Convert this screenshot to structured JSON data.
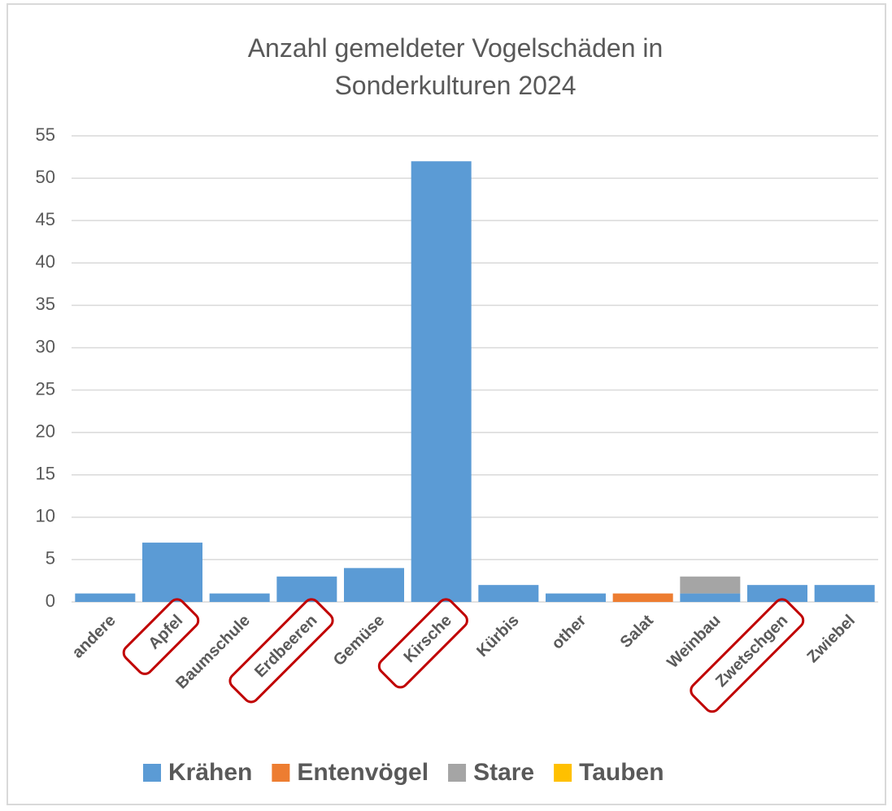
{
  "chart_data": {
    "type": "stacked_bar",
    "title": "Anzahl gemeldeter Vogelschäden in Sonderkulturen 2024",
    "categories": [
      "andere",
      "Apfel",
      "Baumschule",
      "Erdbeeren",
      "Gemüse",
      "Kirsche",
      "Kürbis",
      "other",
      "Salat",
      "Weinbau",
      "Zwetschgen",
      "Zwiebel"
    ],
    "series": [
      {
        "name": "Krähen",
        "color": "#5b9bd5",
        "values": [
          1,
          7,
          1,
          3,
          4,
          52,
          2,
          1,
          0,
          1,
          2,
          2
        ]
      },
      {
        "name": "Entenvögel",
        "color": "#ed7d31",
        "values": [
          0,
          0,
          0,
          0,
          0,
          0,
          0,
          0,
          1,
          0,
          0,
          0
        ]
      },
      {
        "name": "Stare",
        "color": "#a5a5a5",
        "values": [
          0,
          0,
          0,
          0,
          0,
          0,
          0,
          0,
          0,
          2,
          0,
          0
        ]
      },
      {
        "name": "Tauben",
        "color": "#ffc000",
        "values": [
          0,
          0,
          0,
          0,
          0,
          0,
          0,
          0,
          0,
          0,
          0,
          0
        ]
      }
    ],
    "ylim": [
      0,
      55
    ],
    "yticks": [
      0,
      5,
      10,
      15,
      20,
      25,
      30,
      35,
      40,
      45,
      50,
      55
    ],
    "grid": true,
    "legend": "bottom"
  }
}
